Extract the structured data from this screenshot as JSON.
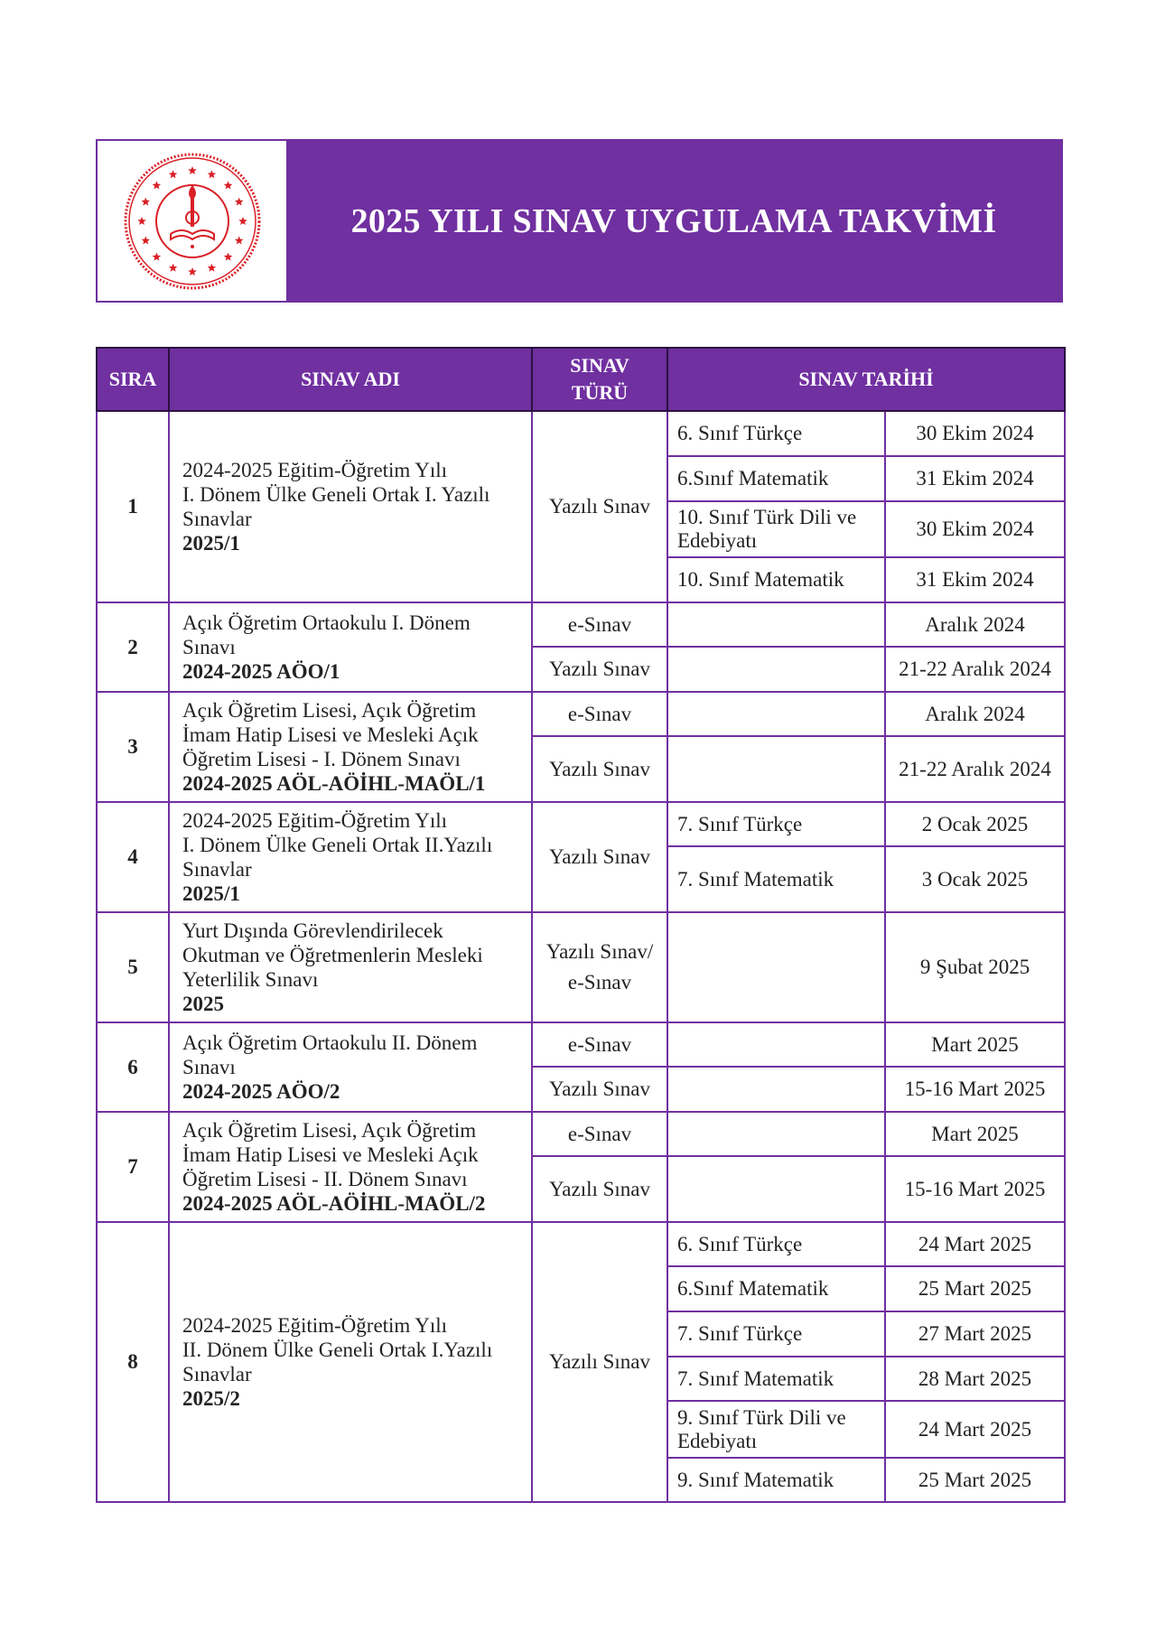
{
  "header": {
    "title": "2025 YILI SINAV UYGULAMA TAKVİMİ",
    "logo_text": "TÜRKİYE CUMHURİYETİ MİLLÎ EĞİTİM BAKANLIĞI",
    "brand_color": "#7030a0",
    "logo_color": "#d92027"
  },
  "table": {
    "columns": [
      "SIRA",
      "SINAV ADI",
      "SINAV TÜRÜ",
      "SINAV TARİHİ"
    ],
    "rows": [
      {
        "no": "1",
        "name": "2024-2025 Eğitim-Öğretim Yılı\nI. Dönem Ülke Geneli Ortak I. Yazılı Sınavlar",
        "code": "2025/1",
        "types": [
          {
            "label": "Yazılı Sınav",
            "span": 4
          }
        ],
        "subrows": [
          {
            "subject": "6. Sınıf Türkçe",
            "date": "30 Ekim 2024"
          },
          {
            "subject": "6.Sınıf Matematik",
            "date": "31 Ekim 2024"
          },
          {
            "subject": "10. Sınıf Türk Dili ve Edebiyatı",
            "date": "30 Ekim 2024"
          },
          {
            "subject": "10. Sınıf Matematik",
            "date": "31 Ekim 2024"
          }
        ]
      },
      {
        "no": "2",
        "name": "Açık Öğretim Ortaokulu I. Dönem Sınavı",
        "code": "2024-2025 AÖO/1",
        "types": [
          {
            "label": "e-Sınav",
            "span": 1
          },
          {
            "label": "Yazılı Sınav",
            "span": 1
          }
        ],
        "subrows": [
          {
            "subject": "",
            "date": "Aralık 2024"
          },
          {
            "subject": "",
            "date": "21-22 Aralık 2024"
          }
        ]
      },
      {
        "no": "3",
        "name": "Açık Öğretim Lisesi, Açık Öğretim İmam Hatip Lisesi ve Mesleki Açık Öğretim Lisesi - I. Dönem Sınavı",
        "code": "2024-2025 AÖL-AÖİHL-MAÖL/1",
        "types": [
          {
            "label": "e-Sınav",
            "span": 1
          },
          {
            "label": "Yazılı Sınav",
            "span": 1
          }
        ],
        "subrows": [
          {
            "subject": "",
            "date": "Aralık 2024"
          },
          {
            "subject": "",
            "date": "21-22 Aralık 2024"
          }
        ]
      },
      {
        "no": "4",
        "name": "2024-2025 Eğitim-Öğretim Yılı\nI. Dönem Ülke Geneli Ortak II.Yazılı Sınavlar",
        "code": "2025/1",
        "types": [
          {
            "label": "Yazılı Sınav",
            "span": 2
          }
        ],
        "subrows": [
          {
            "subject": "7. Sınıf Türkçe",
            "date": "2 Ocak 2025"
          },
          {
            "subject": "7. Sınıf Matematik",
            "date": "3 Ocak 2025"
          }
        ]
      },
      {
        "no": "5",
        "name": "Yurt Dışında Görevlendirilecek Okutman ve Öğretmenlerin Mesleki Yeterlilik Sınavı",
        "code": "2025",
        "types": [
          {
            "label": "Yazılı Sınav/ e-Sınav",
            "span": 1
          }
        ],
        "subrows": [
          {
            "subject": "",
            "date": "9 Şubat 2025"
          }
        ]
      },
      {
        "no": "6",
        "name": "Açık Öğretim Ortaokulu II. Dönem Sınavı",
        "code": "2024-2025 AÖO/2",
        "types": [
          {
            "label": "e-Sınav",
            "span": 1
          },
          {
            "label": "Yazılı Sınav",
            "span": 1
          }
        ],
        "subrows": [
          {
            "subject": "",
            "date": "Mart 2025"
          },
          {
            "subject": "",
            "date": "15-16 Mart 2025"
          }
        ]
      },
      {
        "no": "7",
        "name": "Açık Öğretim Lisesi, Açık Öğretim İmam Hatip Lisesi ve Mesleki Açık Öğretim Lisesi - II. Dönem Sınavı",
        "code": "2024-2025 AÖL-AÖİHL-MAÖL/2",
        "types": [
          {
            "label": "e-Sınav",
            "span": 1
          },
          {
            "label": "Yazılı Sınav",
            "span": 1
          }
        ],
        "subrows": [
          {
            "subject": "",
            "date": "Mart 2025"
          },
          {
            "subject": "",
            "date": "15-16 Mart 2025"
          }
        ]
      },
      {
        "no": "8",
        "name": "2024-2025 Eğitim-Öğretim Yılı\nII. Dönem Ülke Geneli Ortak I.Yazılı Sınavlar",
        "code": "2025/2",
        "types": [
          {
            "label": "Yazılı Sınav",
            "span": 6
          }
        ],
        "subrows": [
          {
            "subject": "6. Sınıf Türkçe",
            "date": "24 Mart 2025"
          },
          {
            "subject": "6.Sınıf Matematik",
            "date": "25 Mart 2025"
          },
          {
            "subject": "7. Sınıf Türkçe",
            "date": "27 Mart 2025"
          },
          {
            "subject": "7. Sınıf Matematik",
            "date": "28 Mart 2025"
          },
          {
            "subject": "9. Sınıf Türk Dili ve Edebiyatı",
            "date": "24 Mart 2025"
          },
          {
            "subject": "9. Sınıf Matematik",
            "date": "25 Mart 2025"
          }
        ]
      }
    ]
  }
}
